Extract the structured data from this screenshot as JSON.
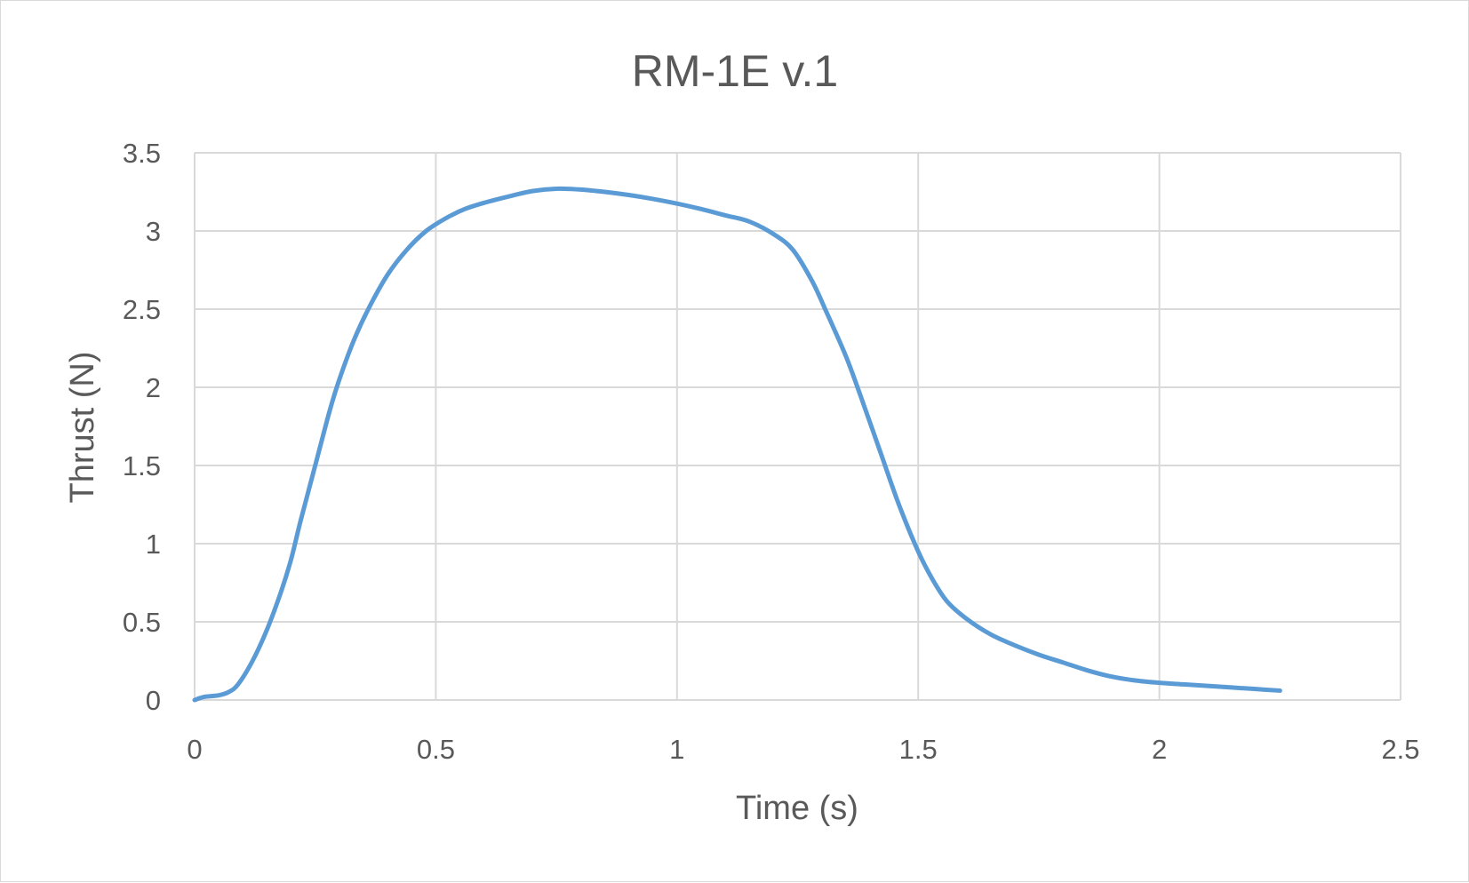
{
  "chart_data": {
    "type": "line",
    "title": "RM-1E v.1",
    "xlabel": "Time (s)",
    "ylabel": "Thrust (N)",
    "xlim": [
      0,
      2.5
    ],
    "ylim": [
      0,
      3.5
    ],
    "x_ticks": [
      "0",
      "0.5",
      "1",
      "1.5",
      "2",
      "2.5"
    ],
    "y_ticks": [
      "0",
      "0.5",
      "1",
      "1.5",
      "2",
      "2.5",
      "3",
      "3.5"
    ],
    "grid": true,
    "legend": "none",
    "colors": {
      "series": "#5b9bd5",
      "grid": "#d9d9d9",
      "text": "#595959"
    },
    "series": [
      {
        "points": [
          [
            0.0,
            0.0
          ],
          [
            0.02,
            0.02
          ],
          [
            0.05,
            0.03
          ],
          [
            0.07,
            0.05
          ],
          [
            0.09,
            0.1
          ],
          [
            0.12,
            0.25
          ],
          [
            0.15,
            0.45
          ],
          [
            0.18,
            0.7
          ],
          [
            0.2,
            0.9
          ],
          [
            0.22,
            1.15
          ],
          [
            0.25,
            1.5
          ],
          [
            0.28,
            1.85
          ],
          [
            0.3,
            2.05
          ],
          [
            0.33,
            2.3
          ],
          [
            0.36,
            2.5
          ],
          [
            0.4,
            2.72
          ],
          [
            0.44,
            2.88
          ],
          [
            0.48,
            3.0
          ],
          [
            0.52,
            3.08
          ],
          [
            0.56,
            3.14
          ],
          [
            0.6,
            3.18
          ],
          [
            0.65,
            3.22
          ],
          [
            0.7,
            3.255
          ],
          [
            0.75,
            3.27
          ],
          [
            0.8,
            3.265
          ],
          [
            0.85,
            3.25
          ],
          [
            0.9,
            3.23
          ],
          [
            0.95,
            3.205
          ],
          [
            1.0,
            3.175
          ],
          [
            1.05,
            3.14
          ],
          [
            1.1,
            3.1
          ],
          [
            1.15,
            3.06
          ],
          [
            1.2,
            2.98
          ],
          [
            1.24,
            2.88
          ],
          [
            1.28,
            2.68
          ],
          [
            1.31,
            2.48
          ],
          [
            1.35,
            2.2
          ],
          [
            1.38,
            1.95
          ],
          [
            1.42,
            1.6
          ],
          [
            1.46,
            1.25
          ],
          [
            1.5,
            0.95
          ],
          [
            1.53,
            0.77
          ],
          [
            1.56,
            0.63
          ],
          [
            1.6,
            0.52
          ],
          [
            1.65,
            0.42
          ],
          [
            1.7,
            0.35
          ],
          [
            1.75,
            0.29
          ],
          [
            1.8,
            0.24
          ],
          [
            1.85,
            0.19
          ],
          [
            1.9,
            0.15
          ],
          [
            1.95,
            0.125
          ],
          [
            2.0,
            0.11
          ],
          [
            2.05,
            0.1
          ],
          [
            2.1,
            0.09
          ],
          [
            2.15,
            0.08
          ],
          [
            2.2,
            0.07
          ],
          [
            2.25,
            0.06
          ]
        ]
      }
    ]
  }
}
